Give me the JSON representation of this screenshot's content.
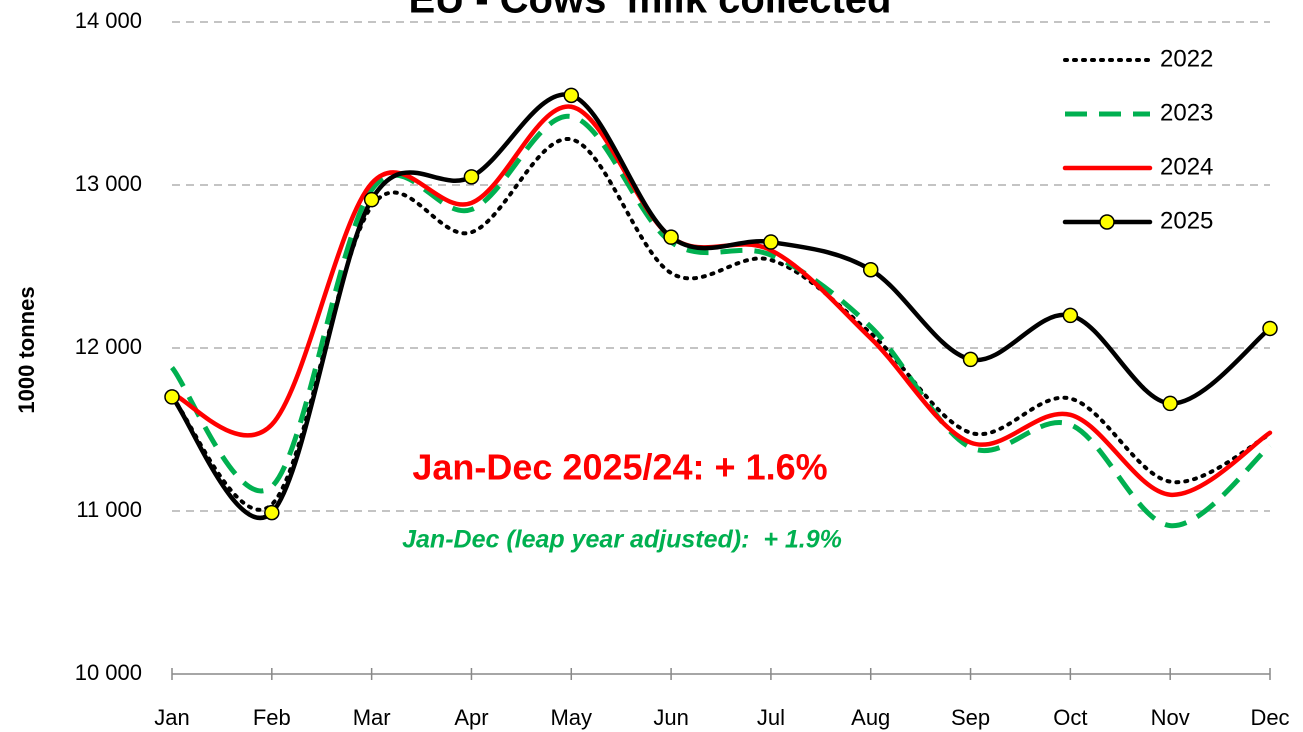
{
  "chart_data": {
    "type": "line",
    "title": "EU - Cows' milk collected",
    "y_label": "1000 tonnes",
    "categories": [
      "Jan",
      "Feb",
      "Mar",
      "Apr",
      "May",
      "Jun",
      "Jul",
      "Aug",
      "Sep",
      "Oct",
      "Nov",
      "Dec"
    ],
    "series": [
      {
        "name": "2022",
        "color": "#000000",
        "style": "dotted",
        "values": [
          11700,
          11040,
          12870,
          12710,
          13280,
          12460,
          12540,
          12090,
          11480,
          11690,
          11180,
          11470
        ]
      },
      {
        "name": "2023",
        "color": "#00b050",
        "style": "dashed",
        "values": [
          11880,
          11150,
          12970,
          12850,
          13420,
          12650,
          12570,
          12130,
          11390,
          11530,
          10910,
          11400
        ]
      },
      {
        "name": "2024",
        "color": "#ff0000",
        "style": "solid",
        "values": [
          11720,
          11530,
          13010,
          12890,
          13480,
          12680,
          12600,
          12060,
          11420,
          11590,
          11100,
          11480
        ]
      },
      {
        "name": "2025",
        "color": "#000000",
        "style": "marker",
        "values": [
          11700,
          10990,
          12910,
          13050,
          13550,
          12680,
          12650,
          12480,
          11930,
          12200,
          11660,
          12120
        ]
      }
    ],
    "ylim": [
      10000,
      14000
    ],
    "yticks": [
      {
        "value": 10000,
        "label": "10 000"
      },
      {
        "value": 11000,
        "label": "11 000"
      },
      {
        "value": 12000,
        "label": "12 000"
      },
      {
        "value": 13000,
        "label": "13 000"
      },
      {
        "value": 14000,
        "label": "14 000"
      }
    ],
    "grid": true,
    "legend": "top-right",
    "annotations": [
      "Jan-Dec 2025/24: + 1.6%",
      "Jan-Dec (leap year adjusted):  + 1.9%"
    ]
  }
}
